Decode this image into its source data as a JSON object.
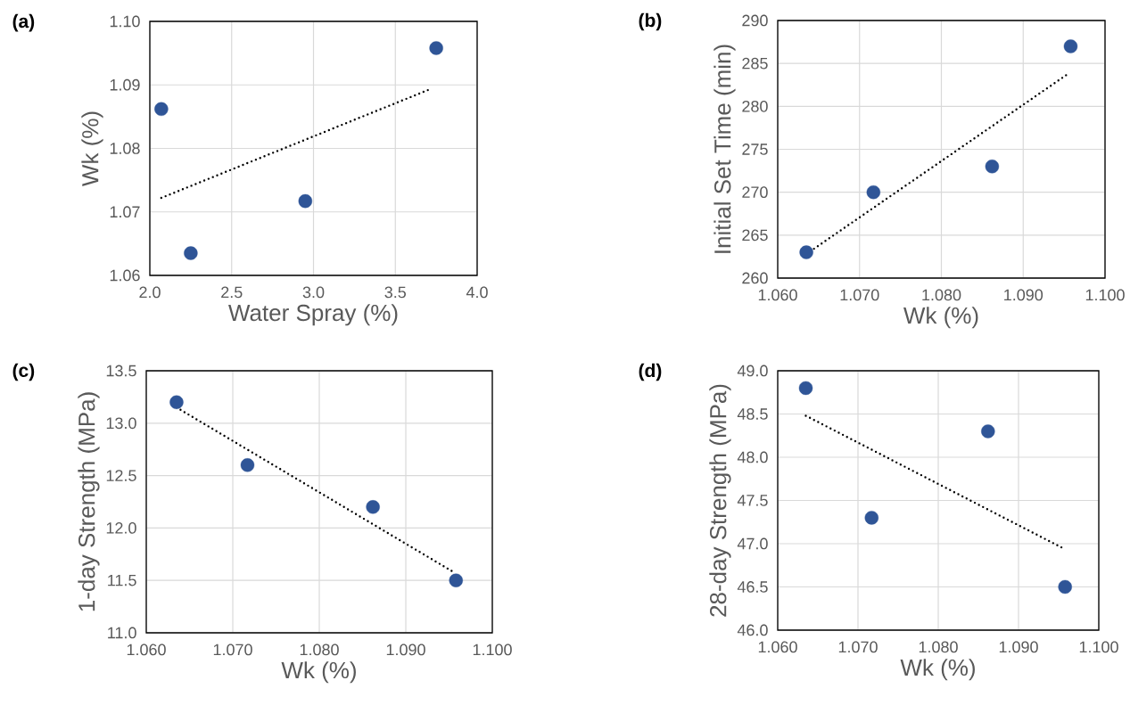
{
  "chart_data": [
    {
      "type": "scatter",
      "title": "(a)",
      "xlabel": "Water Spray (%)",
      "ylabel": "Wk (%)",
      "grid": true,
      "xlim": [
        2.0,
        4.0
      ],
      "ylim": [
        1.06,
        1.1
      ],
      "xticks": [
        {
          "value": 2.0,
          "label": "2.0"
        },
        {
          "value": 2.5,
          "label": "2.5"
        },
        {
          "value": 3.0,
          "label": "3.0"
        },
        {
          "value": 3.5,
          "label": "3.5"
        },
        {
          "value": 4.0,
          "label": "4.0"
        }
      ],
      "yticks": [
        {
          "value": 1.06,
          "label": "1.06"
        },
        {
          "value": 1.07,
          "label": "1.07"
        },
        {
          "value": 1.08,
          "label": "1.08"
        },
        {
          "value": 1.09,
          "label": "1.09"
        },
        {
          "value": 1.1,
          "label": "1.10"
        }
      ],
      "series": [
        {
          "type": "scatter",
          "color": "#2f5597",
          "marker": "circle",
          "x": [
            2.07,
            2.25,
            2.95,
            3.75
          ],
          "values": [
            1.0862,
            1.0635,
            1.0717,
            1.0958
          ]
        },
        {
          "type": "line",
          "color": "#000000",
          "marker": "none",
          "line_style": "dotted",
          "x": [
            2.07,
            3.72
          ],
          "values": [
            1.0722,
            1.0894
          ]
        }
      ]
    },
    {
      "type": "scatter",
      "title": "(b)",
      "xlabel": "Wk (%)",
      "ylabel": "Initial Set Time (min)",
      "grid": true,
      "xlim": [
        1.06,
        1.1
      ],
      "ylim": [
        260,
        290
      ],
      "xticks": [
        {
          "value": 1.06,
          "label": "1.060"
        },
        {
          "value": 1.07,
          "label": "1.070"
        },
        {
          "value": 1.08,
          "label": "1.080"
        },
        {
          "value": 1.09,
          "label": "1.090"
        },
        {
          "value": 1.1,
          "label": "1.100"
        }
      ],
      "yticks": [
        260,
        265,
        270,
        275,
        280,
        285,
        290
      ],
      "series": [
        {
          "type": "scatter",
          "color": "#2f5597",
          "marker": "circle",
          "x": [
            1.0635,
            1.0717,
            1.0862,
            1.0958
          ],
          "values": [
            263,
            270,
            273,
            287
          ]
        },
        {
          "type": "line",
          "color": "#000000",
          "marker": "none",
          "line_style": "dotted",
          "x": [
            1.0635,
            1.0955
          ],
          "values": [
            262.8,
            283.8
          ]
        }
      ]
    },
    {
      "type": "scatter",
      "title": "(c)",
      "xlabel": "Wk (%)",
      "ylabel": "1-day Strength (MPa)",
      "grid": true,
      "xlim": [
        1.06,
        1.1
      ],
      "ylim": [
        11.0,
        13.5
      ],
      "xticks": [
        {
          "value": 1.06,
          "label": "1.060"
        },
        {
          "value": 1.07,
          "label": "1.070"
        },
        {
          "value": 1.08,
          "label": "1.080"
        },
        {
          "value": 1.09,
          "label": "1.090"
        },
        {
          "value": 1.1,
          "label": "1.100"
        }
      ],
      "yticks": [
        {
          "value": 11.0,
          "label": "11.0"
        },
        {
          "value": 11.5,
          "label": "11.5"
        },
        {
          "value": 12.0,
          "label": "12.0"
        },
        {
          "value": 12.5,
          "label": "12.5"
        },
        {
          "value": 13.0,
          "label": "13.0"
        },
        {
          "value": 13.5,
          "label": "13.5"
        }
      ],
      "series": [
        {
          "type": "scatter",
          "color": "#2f5597",
          "marker": "circle",
          "x": [
            1.0635,
            1.0717,
            1.0862,
            1.0958
          ],
          "values": [
            13.2,
            12.6,
            12.2,
            11.5
          ]
        },
        {
          "type": "line",
          "color": "#000000",
          "marker": "none",
          "line_style": "dotted",
          "x": [
            1.0635,
            1.0955
          ],
          "values": [
            13.15,
            11.58
          ]
        }
      ]
    },
    {
      "type": "scatter",
      "title": "(d)",
      "xlabel": "Wk (%)",
      "ylabel": "28-day Strength (MPa)",
      "grid": true,
      "xlim": [
        1.06,
        1.1
      ],
      "ylim": [
        46.0,
        49.0
      ],
      "xticks": [
        {
          "value": 1.06,
          "label": "1.060"
        },
        {
          "value": 1.07,
          "label": "1.070"
        },
        {
          "value": 1.08,
          "label": "1.080"
        },
        {
          "value": 1.09,
          "label": "1.090"
        },
        {
          "value": 1.1,
          "label": "1.100"
        }
      ],
      "yticks": [
        {
          "value": 46.0,
          "label": "46.0"
        },
        {
          "value": 46.5,
          "label": "46.5"
        },
        {
          "value": 47.0,
          "label": "47.0"
        },
        {
          "value": 47.5,
          "label": "47.5"
        },
        {
          "value": 48.0,
          "label": "48.0"
        },
        {
          "value": 48.5,
          "label": "48.5"
        },
        {
          "value": 49.0,
          "label": "49.0"
        }
      ],
      "series": [
        {
          "type": "scatter",
          "color": "#2f5597",
          "marker": "circle",
          "x": [
            1.0635,
            1.0717,
            1.0862,
            1.0958
          ],
          "values": [
            48.8,
            47.3,
            48.3,
            46.5
          ]
        },
        {
          "type": "line",
          "color": "#000000",
          "marker": "none",
          "line_style": "dotted",
          "x": [
            1.0635,
            1.0955
          ],
          "values": [
            48.48,
            46.95
          ]
        }
      ]
    }
  ]
}
